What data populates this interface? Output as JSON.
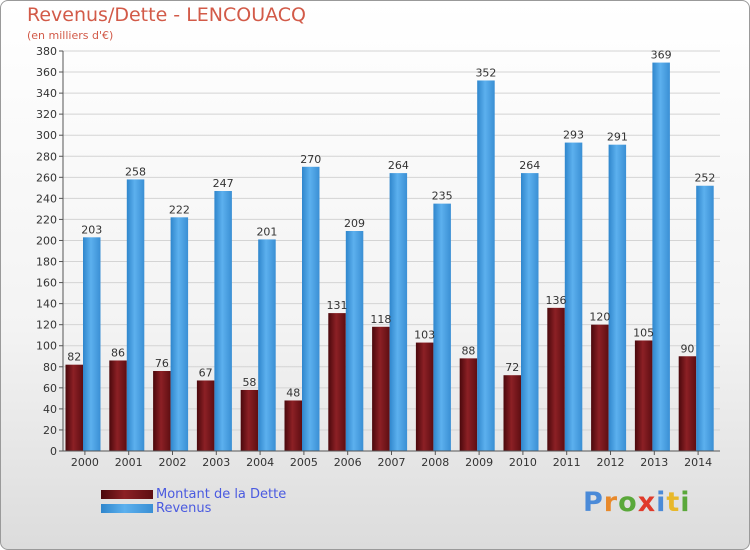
{
  "header": {
    "title": "Revenus/Dette - LENCOUACQ",
    "subtitle": "(en milliers d'€)"
  },
  "legend": {
    "debt_label": "Montant de la Dette",
    "revenue_label": "Revenus"
  },
  "logo": {
    "text": "Proxiti"
  },
  "colors": {
    "debt": "#7a1418",
    "revenue": "#4aa3e6",
    "title": "#d25a48",
    "legend_text": "#4a5ae0"
  },
  "chart_data": {
    "type": "bar",
    "categories": [
      "2000",
      "2001",
      "2002",
      "2003",
      "2004",
      "2005",
      "2006",
      "2007",
      "2008",
      "2009",
      "2010",
      "2011",
      "2012",
      "2013",
      "2014"
    ],
    "series": [
      {
        "name": "Montant de la Dette",
        "values": [
          82,
          86,
          76,
          67,
          58,
          48,
          131,
          118,
          103,
          88,
          72,
          136,
          120,
          105,
          90
        ]
      },
      {
        "name": "Revenus",
        "values": [
          203,
          258,
          222,
          247,
          201,
          270,
          209,
          264,
          235,
          352,
          264,
          293,
          291,
          369,
          252
        ]
      }
    ],
    "title": "Revenus/Dette - LENCOUACQ",
    "ylim": [
      0,
      380
    ],
    "ytick_step": 20,
    "grid": true,
    "legend_position": "bottom-left"
  }
}
